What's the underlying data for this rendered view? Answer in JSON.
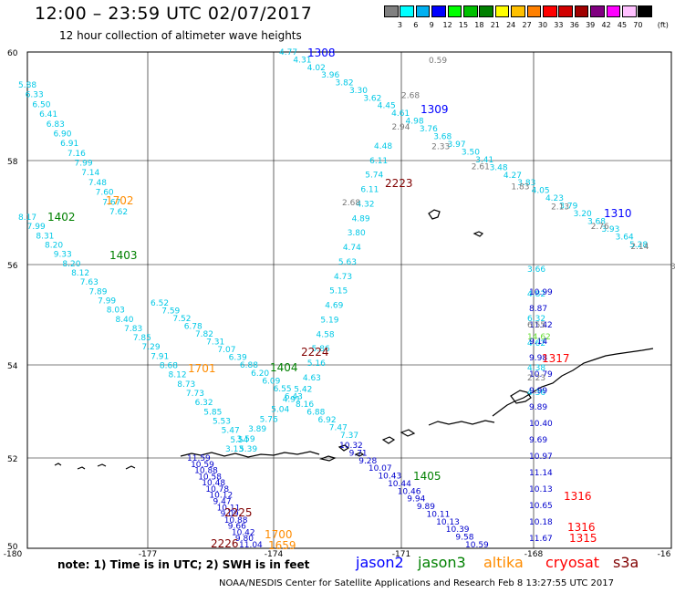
{
  "header": {
    "title": "12:00 – 23:59 UTC 02/07/2017",
    "subtitle": "12 hour collection of altimeter wave heights"
  },
  "colorscale": {
    "unit": "(ft)",
    "entries": [
      {
        "label": "3",
        "color": "#808080"
      },
      {
        "label": "6",
        "color": "#00ffff"
      },
      {
        "label": "9",
        "color": "#00b0f0"
      },
      {
        "label": "12",
        "color": "#0000ff"
      },
      {
        "label": "15",
        "color": "#00ff00"
      },
      {
        "label": "18",
        "color": "#00c000"
      },
      {
        "label": "21",
        "color": "#008000"
      },
      {
        "label": "24",
        "color": "#ffff00"
      },
      {
        "label": "27",
        "color": "#ffc000"
      },
      {
        "label": "30",
        "color": "#ff8000"
      },
      {
        "label": "33",
        "color": "#ff0000"
      },
      {
        "label": "36",
        "color": "#d00000"
      },
      {
        "label": "39",
        "color": "#a00000"
      },
      {
        "label": "42",
        "color": "#800080"
      },
      {
        "label": "45",
        "color": "#ff00ff"
      },
      {
        "label": "70",
        "color": "#ffc0ff"
      },
      {
        "label": "",
        "color": "#000000"
      }
    ]
  },
  "map": {
    "lat_labels": [
      "60",
      "58",
      "56",
      "54",
      "52",
      "50"
    ],
    "lon_labels": [
      "-180",
      "-177",
      "-174",
      "-171",
      "-168",
      "-16"
    ],
    "pass_labels": [
      {
        "text": "1308",
        "color": "#0000ff"
      },
      {
        "text": "1309",
        "color": "#0000ff"
      },
      {
        "text": "1310",
        "color": "#0000ff"
      },
      {
        "text": "1702",
        "color": "#ff8c00"
      },
      {
        "text": "1402",
        "color": "#008000"
      },
      {
        "text": "1403",
        "color": "#008000"
      },
      {
        "text": "2223",
        "color": "#800000"
      },
      {
        "text": "2224",
        "color": "#800000"
      },
      {
        "text": "1701",
        "color": "#ff8c00"
      },
      {
        "text": "1404",
        "color": "#008000"
      },
      {
        "text": "1317",
        "color": "#ff0000"
      },
      {
        "text": "1405",
        "color": "#008000"
      },
      {
        "text": "1316",
        "color": "#ff0000"
      },
      {
        "text": "1316",
        "color": "#ff0000"
      },
      {
        "text": "1315",
        "color": "#ff0000"
      },
      {
        "text": "2225",
        "color": "#800000"
      },
      {
        "text": "2226",
        "color": "#800000"
      },
      {
        "text": "1700",
        "color": "#ff8c00"
      },
      {
        "text": "1659",
        "color": "#ff8c00"
      }
    ],
    "tracks": [
      {
        "name": "jason2 pass 1309",
        "color": "#00c8e6",
        "values": [
          "4.77",
          "4.31",
          "4.02",
          "3.96",
          "3.82",
          "3.30",
          "3.62",
          "4.45",
          "4.61",
          "4.98",
          "3.76",
          "3.68",
          "3.97",
          "3.50",
          "3.41",
          "3.48",
          "4.27",
          "3.83",
          "4.05",
          "4.23",
          "3.79",
          "3.20",
          "3.68",
          "3.93",
          "3.64",
          "5.28"
        ]
      },
      {
        "name": "gray pass near 1309",
        "color": "#777777",
        "values": [
          "0.59",
          "2.68",
          "2.94",
          "2.33",
          "2.61",
          "1.83",
          "2.13",
          "2.76",
          "2.14",
          "3.60"
        ]
      },
      {
        "name": "west arc",
        "color": "#00c8e6",
        "values": [
          "5.88",
          "6.33",
          "6.50",
          "6.41",
          "6.83",
          "6.90",
          "6.91",
          "7.16",
          "7.99",
          "7.14",
          "7.48",
          "7.60",
          "7.67",
          "7.62"
        ]
      },
      {
        "name": "1402 arc",
        "color": "#00c8e6",
        "values": [
          "8.17",
          "7.99",
          "8.31",
          "8.20",
          "9.33",
          "8.20",
          "8.12",
          "7.63",
          "7.89",
          "7.99",
          "8.03",
          "8.40",
          "7.83",
          "7.85",
          "7.29",
          "7.91",
          "8.68",
          "8.12",
          "8.73",
          "7.73",
          "6.32",
          "5.85",
          "5.53",
          "5.47",
          "5.54",
          "5.39"
        ]
      },
      {
        "name": "1404 arc",
        "color": "#00c8e6",
        "values": [
          "6.52",
          "7.59",
          "7.52",
          "6.78",
          "7.82",
          "7.31",
          "7.07",
          "6.39",
          "6.88",
          "6.20",
          "6.09",
          "6.55",
          "6.43",
          "8.16",
          "6.88",
          "6.92",
          "7.47",
          "7.37"
        ]
      },
      {
        "name": "2223 track",
        "color": "#00c8e6",
        "values": [
          "4.48",
          "6.11",
          "5.74",
          "6.11",
          "4.32",
          "4.89",
          "3.80",
          "4.74",
          "5.63",
          "4.73",
          "5.15",
          "4.69",
          "5.19",
          "4.58",
          "5.86",
          "5.16",
          "4.63",
          "5.42",
          "4.91",
          "5.04",
          "5.76",
          "3.89",
          "3.59",
          "3.13"
        ]
      },
      {
        "name": "2223 gray",
        "color": "#777777",
        "values": [
          "2.68"
        ]
      },
      {
        "name": "1317 track",
        "color": "#00c8e6",
        "values": [
          "3.66",
          "4.82",
          "6.32",
          "4.62",
          "4.38",
          "4.36"
        ]
      },
      {
        "name": "1317 blue",
        "color": "#0000cd",
        "values": [
          "10.99",
          "8.87",
          "11.42",
          "9.14",
          "9.98",
          "10.79",
          "9.99",
          "9.89",
          "10.40",
          "9.69",
          "10.97",
          "11.14",
          "10.13",
          "10.65",
          "10.18",
          "11.67"
        ]
      },
      {
        "name": "1317 extra",
        "color": "#777777",
        "values": [
          "6.55",
          "2.23"
        ]
      },
      {
        "name": "1317 green",
        "color": "#66dd33",
        "values": [
          "14.62"
        ]
      },
      {
        "name": "1405 blue",
        "color": "#0000cd",
        "values": [
          "10.32",
          "9.71",
          "9.28",
          "10.07",
          "10.43",
          "10.44",
          "10.46",
          "9.94",
          "9.89",
          "10.11",
          "10.13",
          "10.39",
          "9.58",
          "10.59"
        ]
      },
      {
        "name": "2225 blue",
        "color": "#0000cd",
        "values": [
          "11.59",
          "10.59",
          "10.88",
          "10.58",
          "10.48",
          "10.78",
          "10.12",
          "9.47",
          "10.11",
          "9.09",
          "10.88",
          "9.66",
          "10.42",
          "9.80",
          "11.04"
        ]
      }
    ]
  },
  "note": "note:  1) Time is in UTC;  2) SWH is in feet",
  "legend": [
    {
      "label": "jason2",
      "color": "#0000ff"
    },
    {
      "label": "jason3",
      "color": "#008000"
    },
    {
      "label": "altika",
      "color": "#ff8c00"
    },
    {
      "label": "cryosat",
      "color": "#ff0000"
    },
    {
      "label": "s3a",
      "color": "#800000"
    }
  ],
  "footer": "NOAA/NESDIS Center for Satellite Applications and Research     Feb  8 13:27:55 UTC 2017"
}
